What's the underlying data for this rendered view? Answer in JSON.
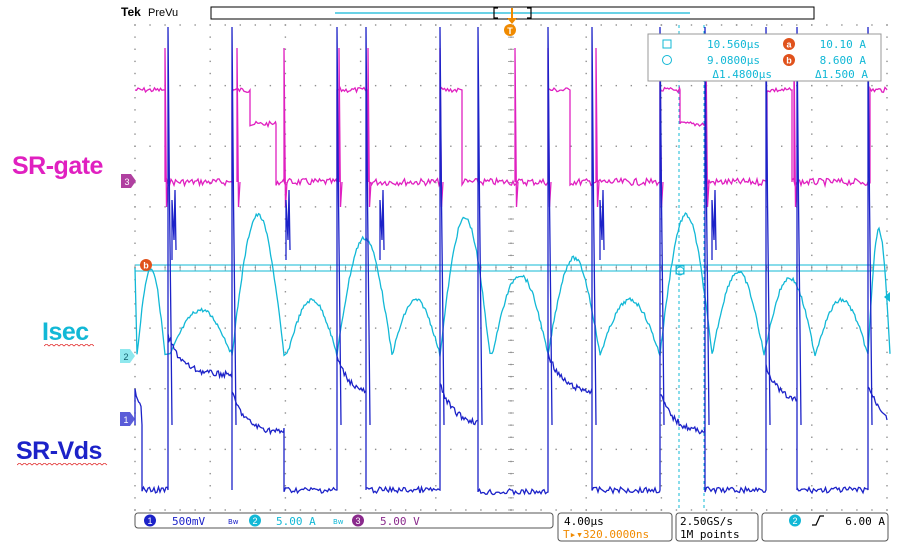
{
  "header": {
    "brand": "Tek",
    "mode": "PreVu",
    "trigger_marker": "T"
  },
  "labels": {
    "gate": "SR-gate",
    "isec": "Isec",
    "vds": "SR-Vds"
  },
  "channel_markers": {
    "ch3": "3",
    "ch2": "2",
    "ch1": "1",
    "cursor_b": "b"
  },
  "cursor_readout": {
    "t1": "10.560µs",
    "a_label": "a",
    "a_value": "10.10 A",
    "t2": "9.0800µs",
    "b_label": "b",
    "b_value": "8.600 A",
    "dt": "Δ1.4800µs",
    "dv": "Δ1.500 A"
  },
  "footer": {
    "ch1_num": "1",
    "ch1_scale": "500mV",
    "ch1_bw": "Bw",
    "ch2_num": "2",
    "ch2_scale": "5.00 A",
    "ch2_bw": "Bw",
    "ch3_num": "3",
    "ch3_scale": "5.00 V",
    "timebase": "4.00µs",
    "trig_pos": "T▸▾320.0000ns",
    "sample_rate": "2.50GS/s",
    "record_len": "1M points",
    "trig_ch": "2",
    "trig_level": "6.00 A"
  },
  "colors": {
    "gate": "#e020c0",
    "isec": "#12b8d6",
    "vds": "#1c22c8",
    "grid": "#8f8f8f",
    "trigger": "#f08a00",
    "cursor_b": "#e0521c"
  }
}
